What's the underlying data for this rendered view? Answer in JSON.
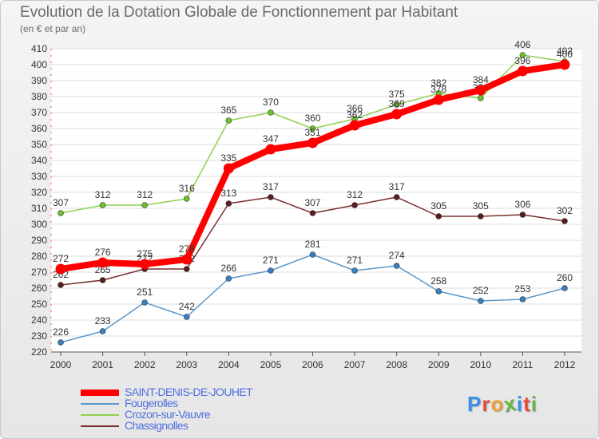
{
  "title": "Evolution de la Dotation Globale de Fonctionnement par Habitant",
  "subtitle": "(en € et par an)",
  "logo_letters": [
    "P",
    "r",
    "o",
    "x",
    "i",
    "t",
    "i"
  ],
  "logo_colors": [
    "#3c8ee6",
    "#e84b3c",
    "#f0a030",
    "#6ab83c",
    "#3c8ee6",
    "#e84b3c",
    "#6ab83c"
  ],
  "chart_data": {
    "type": "line",
    "x": [
      "2000",
      "2001",
      "2002",
      "2003",
      "2004",
      "2005",
      "2006",
      "2007",
      "2008",
      "2009",
      "2010",
      "2011",
      "2012"
    ],
    "ylim": [
      220,
      410
    ],
    "yticks": [
      220,
      230,
      240,
      250,
      260,
      270,
      280,
      290,
      300,
      310,
      320,
      330,
      340,
      350,
      360,
      370,
      380,
      390,
      400,
      410
    ],
    "grid": "horizontal",
    "legend_position": "bottom-left",
    "series": [
      {
        "name": "SAINT-DENIS-DE-JOUHET",
        "color": "#ff0000",
        "highlight": true,
        "values": [
          272,
          276,
          275,
          278,
          335,
          347,
          351,
          362,
          369,
          378,
          384,
          396,
          400
        ]
      },
      {
        "name": "Fougerolles",
        "color": "#5b97c9",
        "highlight": false,
        "values": [
          226,
          233,
          251,
          242,
          266,
          271,
          281,
          271,
          274,
          258,
          252,
          253,
          260
        ]
      },
      {
        "name": "Crozon-sur-Vauvre",
        "color": "#8fd14f",
        "highlight": false,
        "values": [
          307,
          312,
          312,
          316,
          365,
          370,
          360,
          366,
          375,
          382,
          379,
          406,
          402
        ]
      },
      {
        "name": "Chassignolles",
        "color": "#7a2e2e",
        "highlight": false,
        "values": [
          262,
          265,
          272,
          272,
          313,
          317,
          307,
          312,
          317,
          305,
          305,
          306,
          302
        ]
      }
    ]
  }
}
